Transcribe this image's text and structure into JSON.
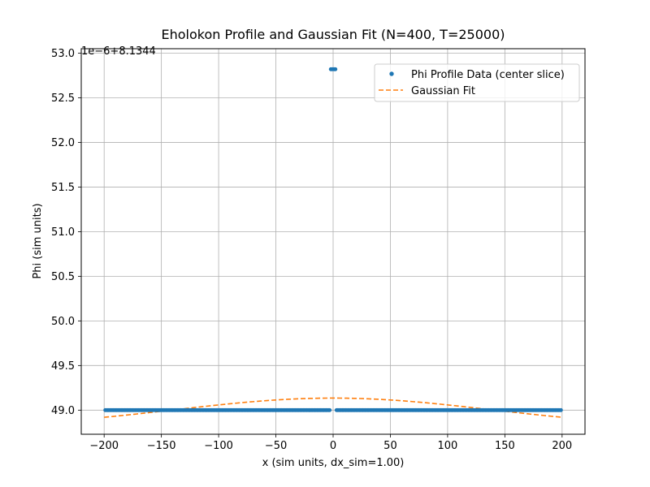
{
  "chart_data": {
    "type": "line",
    "title": "Eholokon Profile and Gaussian Fit (N=400, T=25000)",
    "xlabel": "x (sim units, dx_sim=1.00)",
    "ylabel": "Phi (sim units)",
    "y_offset_label": "1e−6+8.1344",
    "xlim": [
      -220,
      220
    ],
    "ylim": [
      48.73,
      53.05
    ],
    "xticks": [
      -200,
      -150,
      -100,
      -50,
      0,
      50,
      100,
      150,
      200
    ],
    "xtick_labels": [
      "−200",
      "−150",
      "−100",
      "−50",
      "0",
      "50",
      "100",
      "150",
      "200"
    ],
    "yticks": [
      49.0,
      49.5,
      50.0,
      50.5,
      51.0,
      51.5,
      52.0,
      52.5,
      53.0
    ],
    "ytick_labels": [
      "49.0",
      "49.5",
      "50.0",
      "50.5",
      "51.0",
      "51.5",
      "52.0",
      "52.5",
      "53.0"
    ],
    "grid": true,
    "legend_position": "top-right",
    "series": [
      {
        "name": "Phi Profile Data (center slice)",
        "style": "points",
        "color": "#1f77b4",
        "baseline_value": 49.0,
        "peak_value": 52.82,
        "x_range": [
          -199,
          199
        ],
        "peak_x": [
          -2,
          2
        ],
        "gap_x": [
          -2,
          2
        ]
      },
      {
        "name": "Gaussian Fit",
        "style": "dashed-line",
        "color": "#ff7f0e",
        "x_range": [
          -200,
          200
        ],
        "peak_value": 49.135,
        "edge_value": 48.92
      }
    ]
  }
}
